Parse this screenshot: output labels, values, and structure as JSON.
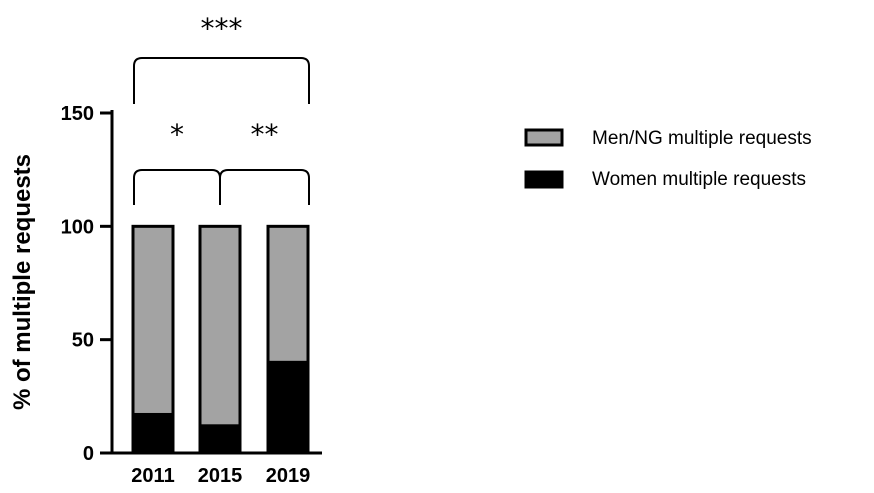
{
  "chart_data": {
    "type": "bar",
    "stacked": true,
    "categories": [
      "2011",
      "2015",
      "2019"
    ],
    "series": [
      {
        "name": "Women multiple requests",
        "values": [
          17,
          12,
          40
        ],
        "color": "#000000"
      },
      {
        "name": "Men/NG multiple requests",
        "values": [
          83,
          88,
          60
        ],
        "color": "#a3a3a3"
      }
    ],
    "ylabel": "% of multiple requests",
    "ylim": [
      0,
      150
    ],
    "yticks": [
      0,
      50,
      100,
      150
    ],
    "legend_position": "right",
    "legend": [
      {
        "label": "Men/NG multiple requests",
        "color": "#a3a3a3"
      },
      {
        "label": "Women multiple requests",
        "color": "#000000"
      }
    ],
    "significance": [
      {
        "from": "2011",
        "to": "2019",
        "label": "***"
      },
      {
        "from": "2011",
        "to": "2015",
        "label": "*"
      },
      {
        "from": "2015",
        "to": "2019",
        "label": "**"
      }
    ]
  }
}
